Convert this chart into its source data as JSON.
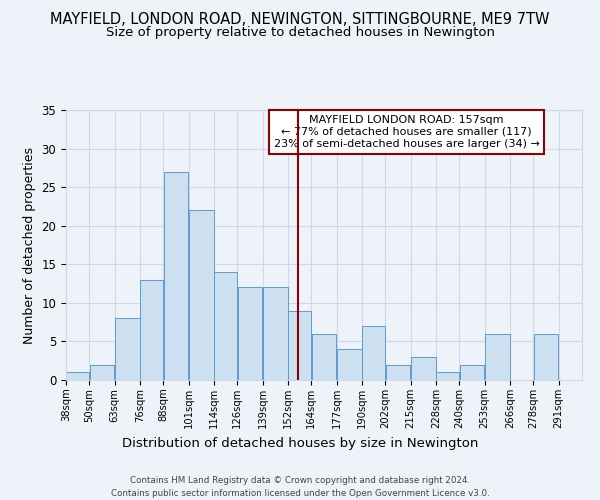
{
  "title": "MAYFIELD, LONDON ROAD, NEWINGTON, SITTINGBOURNE, ME9 7TW",
  "subtitle": "Size of property relative to detached houses in Newington",
  "xlabel": "Distribution of detached houses by size in Newington",
  "ylabel": "Number of detached properties",
  "bin_labels": [
    "38sqm",
    "50sqm",
    "63sqm",
    "76sqm",
    "88sqm",
    "101sqm",
    "114sqm",
    "126sqm",
    "139sqm",
    "152sqm",
    "164sqm",
    "177sqm",
    "190sqm",
    "202sqm",
    "215sqm",
    "228sqm",
    "240sqm",
    "253sqm",
    "266sqm",
    "278sqm",
    "291sqm"
  ],
  "bin_edges": [
    38,
    50,
    63,
    76,
    88,
    101,
    114,
    126,
    139,
    152,
    164,
    177,
    190,
    202,
    215,
    228,
    240,
    253,
    266,
    278,
    291,
    303
  ],
  "counts": [
    1,
    2,
    8,
    13,
    27,
    22,
    14,
    12,
    12,
    9,
    6,
    4,
    7,
    2,
    3,
    1,
    2,
    6,
    0,
    6,
    0
  ],
  "bar_facecolor": "#cce0f0",
  "bar_edgecolor": "#5b9bd5",
  "grid_color": "#d0d8e8",
  "background_color": "#eef3fa",
  "marker_value": 157,
  "marker_color": "#8b0000",
  "annotation_title": "MAYFIELD LONDON ROAD: 157sqm",
  "annotation_line1": "← 77% of detached houses are smaller (117)",
  "annotation_line2": "23% of semi-detached houses are larger (34) →",
  "annotation_box_color": "#ffffff",
  "annotation_box_edge": "#8b0000",
  "ylim": [
    0,
    35
  ],
  "yticks": [
    0,
    5,
    10,
    15,
    20,
    25,
    30,
    35
  ],
  "footer": "Contains HM Land Registry data © Crown copyright and database right 2024.\nContains public sector information licensed under the Open Government Licence v3.0.",
  "title_fontsize": 10.5,
  "subtitle_fontsize": 9.5,
  "ylabel_fontsize": 9,
  "xlabel_fontsize": 9.5
}
